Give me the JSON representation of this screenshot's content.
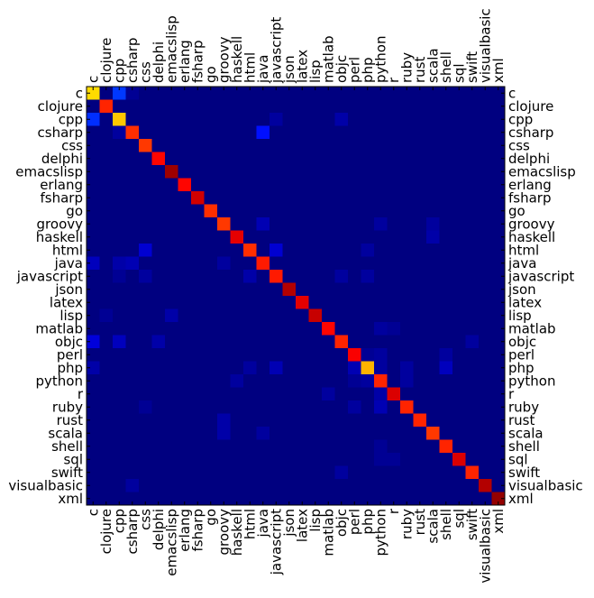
{
  "chart_data": {
    "type": "heatmap",
    "title": "",
    "xlabel": "",
    "ylabel": "",
    "colormap": "jet",
    "color_range": [
      0,
      1
    ],
    "grid": false,
    "legend": "none",
    "x_tick_positions": [
      "top",
      "bottom"
    ],
    "y_tick_positions": [
      "left",
      "right"
    ],
    "categories": [
      "c",
      "clojure",
      "cpp",
      "csharp",
      "css",
      "delphi",
      "emacslisp",
      "erlang",
      "fsharp",
      "go",
      "groovy",
      "haskell",
      "html",
      "java",
      "javascript",
      "json",
      "latex",
      "lisp",
      "matlab",
      "objc",
      "perl",
      "php",
      "python",
      "r",
      "ruby",
      "rust",
      "scala",
      "shell",
      "sql",
      "swift",
      "visualbasic",
      "xml"
    ],
    "diagonal": [
      0.66,
      0.84,
      0.68,
      0.83,
      0.82,
      0.87,
      0.97,
      0.87,
      0.92,
      0.83,
      0.82,
      0.9,
      0.83,
      0.85,
      0.85,
      0.95,
      0.9,
      0.93,
      0.87,
      0.84,
      0.88,
      0.7,
      0.84,
      0.91,
      0.84,
      0.84,
      0.82,
      0.84,
      0.91,
      0.84,
      0.95,
      0.98
    ],
    "off_diagonal": [
      {
        "row": "c",
        "col": "cpp",
        "value": 0.18
      },
      {
        "row": "c",
        "col": "csharp",
        "value": 0.02
      },
      {
        "row": "cpp",
        "col": "c",
        "value": 0.17
      },
      {
        "row": "cpp",
        "col": "javascript",
        "value": 0.03
      },
      {
        "row": "cpp",
        "col": "objc",
        "value": 0.04
      },
      {
        "row": "csharp",
        "col": "java",
        "value": 0.14
      },
      {
        "row": "csharp",
        "col": "cpp",
        "value": 0.03
      },
      {
        "row": "groovy",
        "col": "java",
        "value": 0.05
      },
      {
        "row": "groovy",
        "col": "python",
        "value": 0.03
      },
      {
        "row": "groovy",
        "col": "scala",
        "value": 0.03
      },
      {
        "row": "haskell",
        "col": "scala",
        "value": 0.04
      },
      {
        "row": "html",
        "col": "css",
        "value": 0.08
      },
      {
        "row": "html",
        "col": "javascript",
        "value": 0.08
      },
      {
        "row": "html",
        "col": "php",
        "value": 0.03
      },
      {
        "row": "java",
        "col": "c",
        "value": 0.06
      },
      {
        "row": "java",
        "col": "csharp",
        "value": 0.05
      },
      {
        "row": "java",
        "col": "cpp",
        "value": 0.04
      },
      {
        "row": "java",
        "col": "groovy",
        "value": 0.03
      },
      {
        "row": "javascript",
        "col": "html",
        "value": 0.04
      },
      {
        "row": "javascript",
        "col": "css",
        "value": 0.03
      },
      {
        "row": "javascript",
        "col": "php",
        "value": 0.03
      },
      {
        "row": "javascript",
        "col": "cpp",
        "value": 0.02
      },
      {
        "row": "javascript",
        "col": "objc",
        "value": 0.03
      },
      {
        "row": "lisp",
        "col": "emacslisp",
        "value": 0.04
      },
      {
        "row": "lisp",
        "col": "clojure",
        "value": 0.02
      },
      {
        "row": "matlab",
        "col": "python",
        "value": 0.03
      },
      {
        "row": "matlab",
        "col": "r",
        "value": 0.02
      },
      {
        "row": "objc",
        "col": "c",
        "value": 0.09
      },
      {
        "row": "objc",
        "col": "cpp",
        "value": 0.06
      },
      {
        "row": "objc",
        "col": "delphi",
        "value": 0.04
      },
      {
        "row": "objc",
        "col": "swift",
        "value": 0.03
      },
      {
        "row": "perl",
        "col": "python",
        "value": 0.03
      },
      {
        "row": "perl",
        "col": "shell",
        "value": 0.03
      },
      {
        "row": "perl",
        "col": "php",
        "value": 0.02
      },
      {
        "row": "php",
        "col": "c",
        "value": 0.04
      },
      {
        "row": "php",
        "col": "javascript",
        "value": 0.05
      },
      {
        "row": "php",
        "col": "perl",
        "value": 0.05
      },
      {
        "row": "php",
        "col": "python",
        "value": 0.03
      },
      {
        "row": "php",
        "col": "shell",
        "value": 0.06
      },
      {
        "row": "php",
        "col": "ruby",
        "value": 0.03
      },
      {
        "row": "php",
        "col": "html",
        "value": 0.03
      },
      {
        "row": "python",
        "col": "haskell",
        "value": 0.03
      },
      {
        "row": "python",
        "col": "ruby",
        "value": 0.03
      },
      {
        "row": "python",
        "col": "php",
        "value": 0.03
      },
      {
        "row": "python",
        "col": "perl",
        "value": 0.02
      },
      {
        "row": "r",
        "col": "matlab",
        "value": 0.03
      },
      {
        "row": "r",
        "col": "python",
        "value": 0.04
      },
      {
        "row": "ruby",
        "col": "python",
        "value": 0.05
      },
      {
        "row": "ruby",
        "col": "perl",
        "value": 0.03
      },
      {
        "row": "ruby",
        "col": "css",
        "value": 0.02
      },
      {
        "row": "rust",
        "col": "groovy",
        "value": 0.04
      },
      {
        "row": "scala",
        "col": "groovy",
        "value": 0.04
      },
      {
        "row": "scala",
        "col": "java",
        "value": 0.03
      },
      {
        "row": "shell",
        "col": "python",
        "value": 0.02
      },
      {
        "row": "sql",
        "col": "python",
        "value": 0.02
      },
      {
        "row": "sql",
        "col": "r",
        "value": 0.02
      },
      {
        "row": "swift",
        "col": "objc",
        "value": 0.03
      },
      {
        "row": "visualbasic",
        "col": "csharp",
        "value": 0.03
      }
    ]
  }
}
